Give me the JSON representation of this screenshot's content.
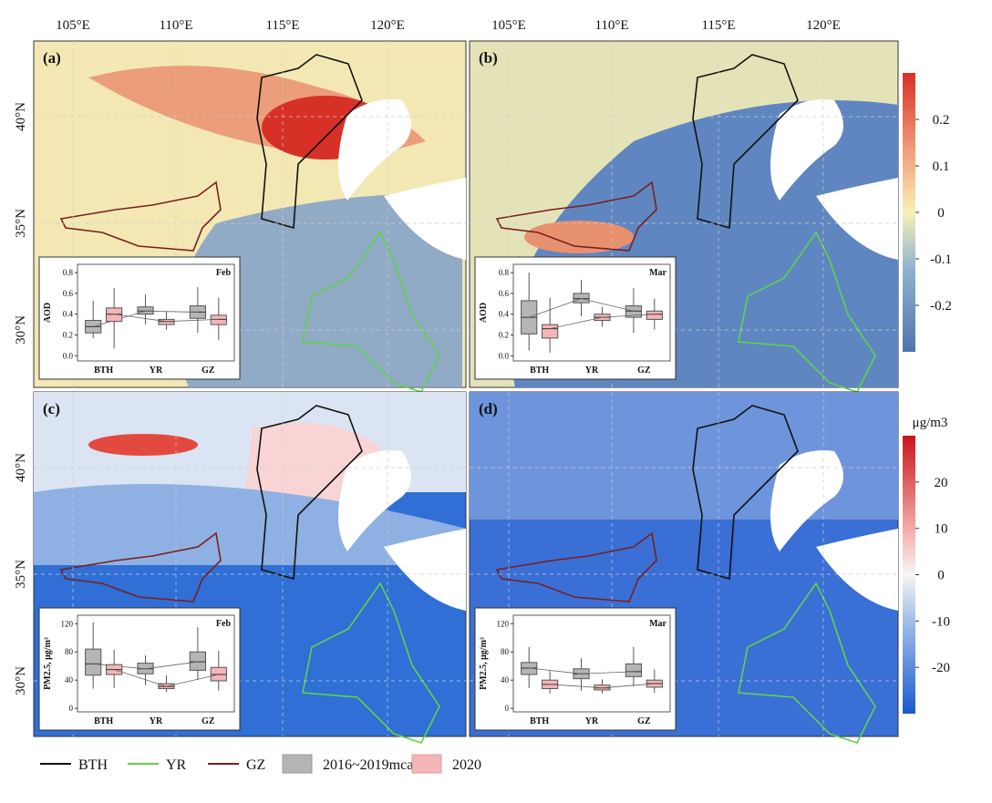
{
  "lon_labels": [
    "105°E",
    "110°E",
    "115°E",
    "120°E"
  ],
  "lat_labels": [
    "40°N",
    "35°N",
    "30°N"
  ],
  "colorbars": [
    {
      "vlim": [
        -0.3,
        0.3
      ],
      "ticks": [
        0.2,
        0.1,
        0,
        -0.1,
        -0.2
      ]
    },
    {
      "unit": "μg/m3",
      "vlim": [
        -30,
        30
      ],
      "ticks": [
        20,
        10,
        0,
        -10,
        -20
      ]
    }
  ],
  "panels": [
    {
      "label": "(a)",
      "inset": {
        "type": "box",
        "month": "Feb",
        "ylabel": "AOD",
        "categories": [
          "BTH",
          "YR",
          "GZ"
        ],
        "ylim": [
          -0.05,
          0.88
        ],
        "yticks": [
          {
            "value": 0,
            "label": "0.0"
          },
          0.2,
          0.4,
          0.6,
          0.8
        ],
        "series": [
          {
            "name": "2016~2019mcan",
            "color": "#b5b5b5",
            "boxes": [
              {
                "min": 0.17,
                "q1": 0.22,
                "median": 0.28,
                "q3": 0.34,
                "max": 0.53
              },
              {
                "min": 0.3,
                "q1": 0.4,
                "median": 0.43,
                "q3": 0.47,
                "max": 0.59
              },
              {
                "min": 0.22,
                "q1": 0.36,
                "median": 0.42,
                "q3": 0.48,
                "max": 0.66
              }
            ]
          },
          {
            "name": "2020",
            "color": "#f4b6b8",
            "boxes": [
              {
                "min": 0.07,
                "q1": 0.33,
                "median": 0.4,
                "q3": 0.46,
                "max": 0.65
              },
              {
                "min": 0.25,
                "q1": 0.3,
                "median": 0.33,
                "q3": 0.35,
                "max": 0.43
              },
              {
                "min": 0.15,
                "q1": 0.3,
                "median": 0.35,
                "q3": 0.39,
                "max": 0.56
              }
            ]
          }
        ]
      }
    },
    {
      "label": "(b)",
      "inset": {
        "type": "box",
        "month": "Mar",
        "ylabel": "AOD",
        "categories": [
          "BTH",
          "YR",
          "GZ"
        ],
        "ylim": [
          -0.05,
          0.88
        ],
        "yticks": [
          {
            "value": 0,
            "label": "0.0"
          },
          0.2,
          0.4,
          0.6,
          0.8
        ],
        "series": [
          {
            "name": "2016~2019mcan",
            "color": "#b5b5b5",
            "boxes": [
              {
                "min": 0.05,
                "q1": 0.21,
                "median": 0.37,
                "q3": 0.53,
                "max": 0.8
              },
              {
                "min": 0.38,
                "q1": 0.51,
                "median": 0.55,
                "q3": 0.6,
                "max": 0.73
              },
              {
                "min": 0.22,
                "q1": 0.37,
                "median": 0.43,
                "q3": 0.48,
                "max": 0.65
              }
            ]
          },
          {
            "name": "2020",
            "color": "#f4b6b8",
            "boxes": [
              {
                "min": 0.03,
                "q1": 0.17,
                "median": 0.26,
                "q3": 0.3,
                "max": 0.56
              },
              {
                "min": 0.28,
                "q1": 0.34,
                "median": 0.37,
                "q3": 0.4,
                "max": 0.47
              },
              {
                "min": 0.25,
                "q1": 0.35,
                "median": 0.4,
                "q3": 0.43,
                "max": 0.55
              }
            ]
          }
        ]
      }
    },
    {
      "label": "(c)",
      "inset": {
        "type": "box",
        "month": "Feb",
        "ylabel": "PM2.5, μg/m³",
        "categories": [
          "BTH",
          "YR",
          "GZ"
        ],
        "ylim": [
          -5,
          132
        ],
        "yticks": [
          0,
          40,
          80,
          120
        ],
        "series": [
          {
            "name": "2016~2019mcan",
            "color": "#b5b5b5",
            "boxes": [
              {
                "min": 28,
                "q1": 47,
                "median": 63,
                "q3": 84,
                "max": 122
              },
              {
                "min": 33,
                "q1": 49,
                "median": 56,
                "q3": 64,
                "max": 75
              },
              {
                "min": 40,
                "q1": 54,
                "median": 66,
                "q3": 80,
                "max": 115
              }
            ]
          },
          {
            "name": "2020",
            "color": "#f4b6b8",
            "boxes": [
              {
                "min": 29,
                "q1": 48,
                "median": 55,
                "q3": 62,
                "max": 83
              },
              {
                "min": 23,
                "q1": 28,
                "median": 31,
                "q3": 35,
                "max": 47
              },
              {
                "min": 25,
                "q1": 39,
                "median": 48,
                "q3": 58,
                "max": 82
              }
            ]
          }
        ]
      }
    },
    {
      "label": "(d)",
      "inset": {
        "type": "box",
        "month": "Mar",
        "ylabel": "PM2.5, μg/m³",
        "categories": [
          "BTH",
          "YR",
          "GZ"
        ],
        "ylim": [
          -5,
          132
        ],
        "yticks": [
          0,
          40,
          80,
          120
        ],
        "series": [
          {
            "name": "2016~2019mcan",
            "color": "#b5b5b5",
            "boxes": [
              {
                "min": 29,
                "q1": 48,
                "median": 57,
                "q3": 65,
                "max": 87
              },
              {
                "min": 25,
                "q1": 42,
                "median": 49,
                "q3": 56,
                "max": 71
              },
              {
                "min": 31,
                "q1": 45,
                "median": 52,
                "q3": 63,
                "max": 87
              }
            ]
          },
          {
            "name": "2020",
            "color": "#f4b6b8",
            "boxes": [
              {
                "min": 21,
                "q1": 28,
                "median": 34,
                "q3": 40,
                "max": 53
              },
              {
                "min": 21,
                "q1": 26,
                "median": 29,
                "q3": 33,
                "max": 41
              },
              {
                "min": 22,
                "q1": 30,
                "median": 35,
                "q3": 40,
                "max": 55
              }
            ]
          }
        ]
      }
    }
  ],
  "legend": {
    "lines": [
      {
        "name": "BTH",
        "color": "#111111"
      },
      {
        "name": "YR",
        "color": "#5fd34a"
      },
      {
        "name": "GZ",
        "color": "#7a1f1f"
      }
    ]
  }
}
